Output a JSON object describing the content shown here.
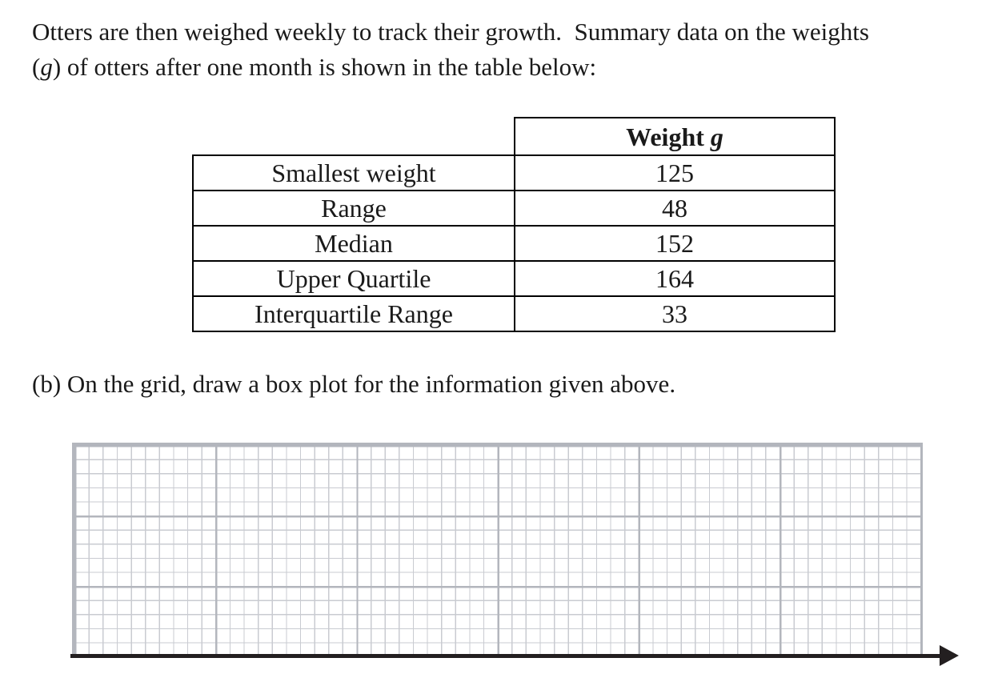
{
  "intro": {
    "line1": "Otters are then weighed weekly to track their growth.  Summary data on the weights",
    "line2_paren_open": "(",
    "line2_g": "g",
    "line2_rest": ") of otters after one month is shown in the table below:"
  },
  "summary_table": {
    "header": {
      "title": "Weight ",
      "variable": "g"
    },
    "rows": [
      {
        "label": "Smallest weight",
        "value": "125"
      },
      {
        "label": "Range",
        "value": "48"
      },
      {
        "label": "Median",
        "value": "152"
      },
      {
        "label": "Upper Quartile",
        "value": "164"
      },
      {
        "label": "Interquartile Range",
        "value": "33"
      }
    ]
  },
  "part_b": {
    "text": "(b) On the grid, draw a box plot for the information given above."
  },
  "grid": {
    "columns": 60,
    "rows": 15,
    "vertical_major_every": 10,
    "horizontal_major_every": 5,
    "drawn_content": "empty"
  },
  "icons": {
    "axis_arrow": "right-arrowhead"
  },
  "colors": {
    "text": "#1a1a1a",
    "table_border": "#000000",
    "grid_minor_line": "#c9cbd1",
    "grid_major_line": "#b3b6bd",
    "axis_line": "#231f20"
  }
}
